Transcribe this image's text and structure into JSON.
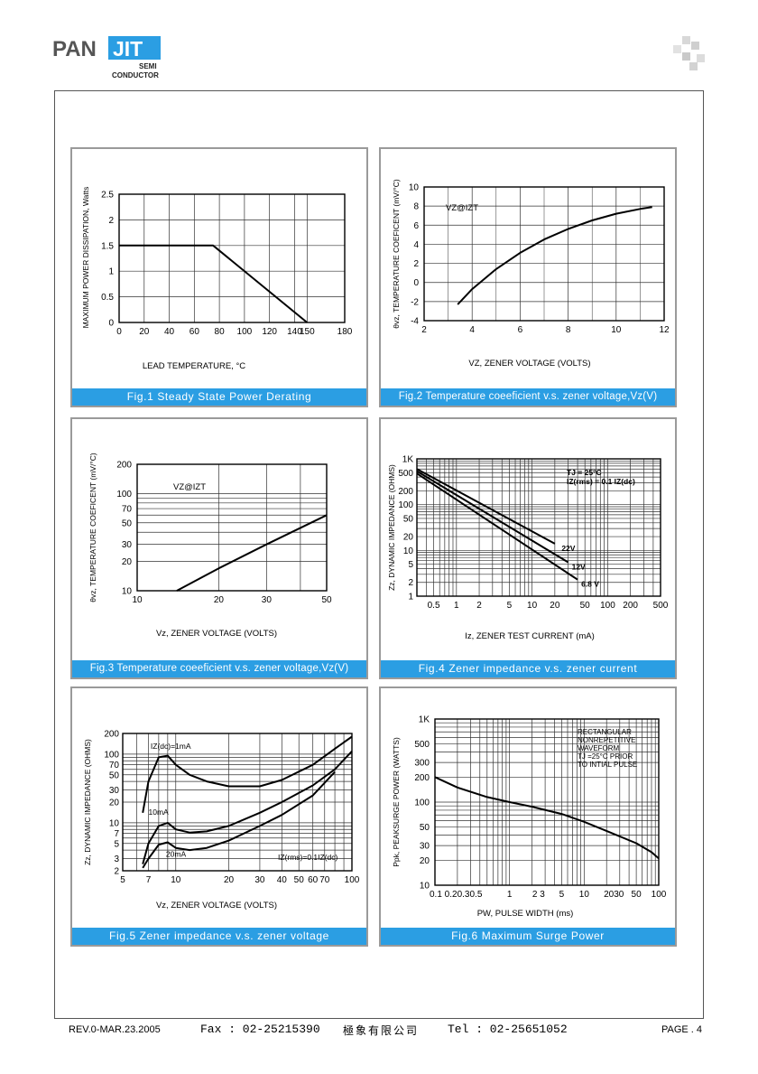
{
  "header": {
    "logo_left": "PAN",
    "logo_right": "JIT",
    "logo_sub1": "SEMI",
    "logo_sub2": "CONDUCTOR"
  },
  "footer": {
    "rev": "REV.0-MAR.23.2005",
    "fax": "Fax : 02-25215390",
    "company": "極象有限公司",
    "tel": "Tel : 02-25651052",
    "page": "PAGE . 4"
  },
  "colors": {
    "caption_bg": "#2b9ee3",
    "grid": "#222222",
    "panel_border": "#9a9a9a"
  },
  "figures": [
    {
      "caption": "Fig.1 Steady State Power Derating",
      "ylabel": "MAXIMUM POWER DISSIPATION, Watts",
      "xlabel": "LEAD TEMPERATURE, °C",
      "annotations": []
    },
    {
      "caption": "Fig.2 Temperature coeeficient v.s. zener voltage,Vz(V)",
      "ylabel": "θvz, TEMPERATURE COEFICENT (mV/°C)",
      "xlabel": "VZ, ZENER VOLTAGE (VOLTS)",
      "annotations": [
        "VZ@IZT"
      ]
    },
    {
      "caption": "Fig.3 Temperature coeeficient v.s. zener voltage,Vz(V)",
      "ylabel": "θvz, TEMPERATURE COEFICENT (mV/°C)",
      "xlabel": "Vz, ZENER VOLTAGE (VOLTS)",
      "annotations": [
        "VZ@IZT"
      ]
    },
    {
      "caption": "Fig.4 Zener impedance v.s. zener current",
      "ylabel": "Zz, DYNAMIC IMPEDANCE (OHMS)",
      "xlabel": "Iz, ZENER TEST CURRENT (mA)",
      "annotations": [
        "TJ = 25°C",
        "IZ(rms) = 0.1 IZ(dc)"
      ]
    },
    {
      "caption": "Fig.5 Zener impedance v.s. zener voltage",
      "ylabel": "Zz, DYNAMIC IMPEDANCE (OHMS)",
      "xlabel": "Vz, ZENER VOLTAGE (VOLTS)",
      "annotations": [
        "IZ(dc)=1mA",
        "IZ(rms)=0.1IZ(dc)"
      ]
    },
    {
      "caption": "Fig.6 Maximum Surge Power",
      "ylabel": "Ppk, PEAKSURGE POWER (WATTS)",
      "xlabel": "PW, PULSE WIDTH (ms)",
      "annotations": [
        "RECTANGULAR",
        "NONREPETITIVE",
        "WAVEFORM",
        "TJ =25°C PRIOR",
        "TO INTIAL PULSE"
      ]
    }
  ],
  "chart_data": [
    {
      "type": "line",
      "title": "Fig.1 Steady State Power Derating",
      "xlabel": "LEAD TEMPERATURE, °C",
      "ylabel": "MAXIMUM POWER DISSIPATION, Watts",
      "xlim": [
        0,
        180
      ],
      "ylim": [
        0,
        2.5
      ],
      "xscale": "linear",
      "yscale": "linear",
      "grid": true,
      "xticks": [
        "0",
        "20",
        "40",
        "60",
        "80",
        "100",
        "120",
        "140",
        "150",
        "180"
      ],
      "yticks": [
        "0",
        "0.5",
        "1",
        "1.5",
        "2",
        "2.5"
      ],
      "series": [
        {
          "x": [
            0,
            75,
            150
          ],
          "y": [
            1.5,
            1.5,
            0
          ]
        }
      ]
    },
    {
      "type": "line",
      "title": "Fig.2 Temperature coeeficient v.s. zener voltage,Vz(V)",
      "xlabel": "VZ, ZENER VOLTAGE (VOLTS)",
      "ylabel": "θvz, TEMPERATURE COEFICENT (mV/°C)",
      "xlim": [
        2,
        12
      ],
      "ylim": [
        -4,
        10
      ],
      "xscale": "linear",
      "yscale": "linear",
      "grid": true,
      "xticks": [
        "2",
        "4",
        "6",
        "8",
        "10",
        "12"
      ],
      "yticks": [
        "-4",
        "-2",
        "0",
        "2",
        "4",
        "6",
        "8",
        "10"
      ],
      "series": [
        {
          "x": [
            3.4,
            4,
            5,
            6,
            7,
            8,
            9,
            10,
            11,
            11.5
          ],
          "y": [
            -2.3,
            -0.7,
            1.4,
            3.1,
            4.5,
            5.6,
            6.5,
            7.2,
            7.7,
            7.9
          ]
        }
      ]
    },
    {
      "type": "line",
      "title": "Fig.3 Temperature coeeficient v.s. zener voltage,Vz(V)",
      "xlabel": "Vz, ZENER VOLTAGE (VOLTS)",
      "ylabel": "θvz, TEMPERATURE COEFICENT (mV/°C)",
      "xlim": [
        10,
        50
      ],
      "ylim": [
        10,
        200
      ],
      "xscale": "log",
      "yscale": "log",
      "grid": true,
      "xticks": [
        "10",
        "20",
        "30",
        "50"
      ],
      "yticks": [
        "10",
        "20",
        "30",
        "50",
        "70",
        "100",
        "200"
      ],
      "series": [
        {
          "x": [
            14,
            20,
            30,
            50
          ],
          "y": [
            10,
            17,
            30,
            60
          ]
        }
      ]
    },
    {
      "type": "line",
      "title": "Fig.4 Zener impedance v.s. zener current",
      "xlabel": "Iz, ZENER TEST CURRENT (mA)",
      "ylabel": "Zz, DYNAMIC IMPEDANCE (OHMS)",
      "xlim": [
        0.3,
        500
      ],
      "ylim": [
        1,
        1000
      ],
      "xscale": "log",
      "yscale": "log",
      "grid": true,
      "xticks": [
        "0.5",
        "1",
        "2",
        "5",
        "10",
        "20",
        "50",
        "100",
        "200",
        "500"
      ],
      "yticks": [
        "1",
        "2",
        "5",
        "10",
        "20",
        "50",
        "100",
        "200",
        "500",
        "1K"
      ],
      "series": [
        {
          "name": "22V",
          "x": [
            0.3,
            20
          ],
          "y": [
            600,
            14
          ]
        },
        {
          "name": "12V",
          "x": [
            0.3,
            30
          ],
          "y": [
            540,
            5.5
          ]
        },
        {
          "name": "6.8 V",
          "x": [
            0.3,
            40
          ],
          "y": [
            480,
            2.3
          ]
        }
      ]
    },
    {
      "type": "line",
      "title": "Fig.5 Zener impedance v.s. zener voltage",
      "xlabel": "Vz, ZENER VOLTAGE (VOLTS)",
      "ylabel": "Zz, DYNAMIC IMPEDANCE (OHMS)",
      "xlim": [
        5,
        100
      ],
      "ylim": [
        2,
        200
      ],
      "xscale": "log",
      "yscale": "log",
      "grid": true,
      "xticks": [
        "5",
        "7",
        "10",
        "20",
        "30",
        "40",
        "50",
        "60",
        "70",
        "100"
      ],
      "yticks": [
        "2",
        "3",
        "5",
        "7",
        "10",
        "20",
        "30",
        "50",
        "70",
        "100",
        "200"
      ],
      "series": [
        {
          "name": "IZ(dc)=1mA",
          "x": [
            6.5,
            7,
            8,
            9,
            10,
            12,
            15,
            20,
            30,
            40,
            60,
            80,
            100
          ],
          "y": [
            14,
            40,
            90,
            95,
            70,
            50,
            40,
            34,
            34,
            42,
            70,
            120,
            180
          ]
        },
        {
          "name": "10mA",
          "x": [
            6.5,
            7,
            8,
            9,
            10,
            12,
            15,
            20,
            30,
            40,
            60,
            80,
            100
          ],
          "y": [
            2.5,
            5,
            9,
            10,
            8,
            7.2,
            7.5,
            9,
            14,
            20,
            35,
            60,
            110
          ]
        },
        {
          "name": "20mA",
          "x": [
            6.5,
            7,
            8,
            9,
            10,
            12,
            15,
            20,
            30,
            40,
            60,
            80
          ],
          "y": [
            2.2,
            3,
            4.8,
            5.2,
            4.3,
            4,
            4.3,
            5.5,
            9,
            13,
            25,
            55
          ]
        }
      ]
    },
    {
      "type": "line",
      "title": "Fig.6 Maximum Surge Power",
      "xlabel": "PW, PULSE WIDTH (ms)",
      "ylabel": "Ppk, PEAKSURGE POWER (WATTS)",
      "xlim": [
        0.1,
        100
      ],
      "ylim": [
        10,
        1000
      ],
      "xscale": "log",
      "yscale": "log",
      "grid": true,
      "xticks": [
        "0.1",
        "0.2",
        "0.3",
        "0.5",
        "1",
        "2",
        "3",
        "5",
        "10",
        "20",
        "30",
        "50",
        "100"
      ],
      "xtick_text": [
        "0.1 0.20.30.5",
        "1",
        "2 3",
        "5",
        "10",
        "2030",
        "50",
        "100"
      ],
      "yticks": [
        "10",
        "20",
        "30",
        "50",
        "100",
        "200",
        "300",
        "500",
        "1K"
      ],
      "series": [
        {
          "x": [
            0.1,
            0.2,
            0.5,
            1,
            2,
            5,
            10,
            20,
            50,
            80,
            100
          ],
          "y": [
            200,
            150,
            115,
            100,
            88,
            72,
            58,
            45,
            32,
            25,
            21
          ]
        }
      ]
    }
  ]
}
